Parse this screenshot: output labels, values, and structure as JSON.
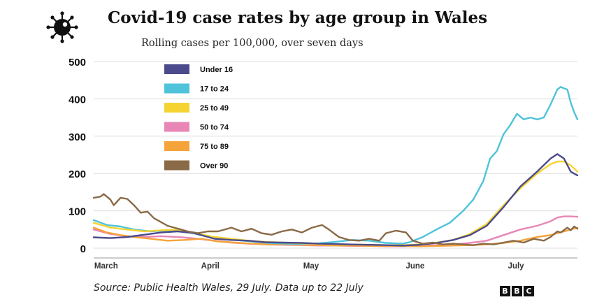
{
  "header": {
    "title": "Covid-19 case rates by age group in Wales",
    "subtitle": "Rolling cases per 100,000, over seven days",
    "logo_icon": "virus-icon"
  },
  "footer": {
    "source": "Source: Public Health Wales, 29 July. Data up to 22 July",
    "brand_letters": [
      "B",
      "B",
      "C"
    ]
  },
  "chart_data": {
    "type": "line",
    "title": "Covid-19 case rates by age group in Wales",
    "subtitle": "Rolling cases per 100,000, over seven days",
    "xlabel": "",
    "ylabel": "",
    "x_tick_labels": [
      "March",
      "April",
      "May",
      "June",
      "July"
    ],
    "y_ticks": [
      0,
      100,
      200,
      300,
      400,
      500
    ],
    "ylim": [
      0,
      500
    ],
    "xlim": [
      "2021-02-28",
      "2021-07-22"
    ],
    "grid": "horizontal",
    "legend_position": "top-left",
    "series": [
      {
        "name": "Under 16",
        "color": "#4b4a8c",
        "points": [
          [
            "2021-02-28",
            29
          ],
          [
            "2021-03-05",
            27
          ],
          [
            "2021-03-10",
            30
          ],
          [
            "2021-03-15",
            36
          ],
          [
            "2021-03-20",
            42
          ],
          [
            "2021-03-25",
            45
          ],
          [
            "2021-03-30",
            40
          ],
          [
            "2021-04-05",
            25
          ],
          [
            "2021-04-10",
            22
          ],
          [
            "2021-04-15",
            20
          ],
          [
            "2021-04-20",
            16
          ],
          [
            "2021-04-25",
            15
          ],
          [
            "2021-05-01",
            14
          ],
          [
            "2021-05-06",
            12
          ],
          [
            "2021-05-11",
            11
          ],
          [
            "2021-05-16",
            10
          ],
          [
            "2021-05-21",
            9
          ],
          [
            "2021-05-26",
            8
          ],
          [
            "2021-05-31",
            7
          ],
          [
            "2021-06-05",
            9
          ],
          [
            "2021-06-10",
            14
          ],
          [
            "2021-06-15",
            22
          ],
          [
            "2021-06-20",
            35
          ],
          [
            "2021-06-25",
            60
          ],
          [
            "2021-06-30",
            110
          ],
          [
            "2021-07-05",
            165
          ],
          [
            "2021-07-10",
            205
          ],
          [
            "2021-07-14",
            240
          ],
          [
            "2021-07-16",
            252
          ],
          [
            "2021-07-18",
            240
          ],
          [
            "2021-07-20",
            205
          ],
          [
            "2021-07-22",
            195
          ]
        ]
      },
      {
        "name": "17 to 24",
        "color": "#4fc3d9",
        "points": [
          [
            "2021-02-28",
            75
          ],
          [
            "2021-03-04",
            62
          ],
          [
            "2021-03-08",
            58
          ],
          [
            "2021-03-12",
            50
          ],
          [
            "2021-03-17",
            45
          ],
          [
            "2021-03-22",
            48
          ],
          [
            "2021-03-27",
            45
          ],
          [
            "2021-04-01",
            35
          ],
          [
            "2021-04-06",
            28
          ],
          [
            "2021-04-11",
            22
          ],
          [
            "2021-04-16",
            18
          ],
          [
            "2021-04-21",
            14
          ],
          [
            "2021-04-26",
            12
          ],
          [
            "2021-05-01",
            11
          ],
          [
            "2021-05-06",
            13
          ],
          [
            "2021-05-11",
            17
          ],
          [
            "2021-05-16",
            22
          ],
          [
            "2021-05-21",
            20
          ],
          [
            "2021-05-26",
            14
          ],
          [
            "2021-05-31",
            12
          ],
          [
            "2021-06-02",
            16
          ],
          [
            "2021-06-06",
            30
          ],
          [
            "2021-06-10",
            50
          ],
          [
            "2021-06-14",
            68
          ],
          [
            "2021-06-18",
            100
          ],
          [
            "2021-06-21",
            130
          ],
          [
            "2021-06-24",
            180
          ],
          [
            "2021-06-26",
            240
          ],
          [
            "2021-06-28",
            260
          ],
          [
            "2021-06-30",
            305
          ],
          [
            "2021-07-02",
            330
          ],
          [
            "2021-07-04",
            360
          ],
          [
            "2021-07-06",
            345
          ],
          [
            "2021-07-08",
            350
          ],
          [
            "2021-07-10",
            345
          ],
          [
            "2021-07-12",
            350
          ],
          [
            "2021-07-14",
            385
          ],
          [
            "2021-07-16",
            425
          ],
          [
            "2021-07-17",
            432
          ],
          [
            "2021-07-18",
            428
          ],
          [
            "2021-07-19",
            425
          ],
          [
            "2021-07-20",
            390
          ],
          [
            "2021-07-21",
            365
          ],
          [
            "2021-07-22",
            345
          ]
        ]
      },
      {
        "name": "25 to 49",
        "color": "#f5d432",
        "points": [
          [
            "2021-02-28",
            68
          ],
          [
            "2021-03-05",
            55
          ],
          [
            "2021-03-10",
            50
          ],
          [
            "2021-03-15",
            45
          ],
          [
            "2021-03-20",
            48
          ],
          [
            "2021-03-25",
            50
          ],
          [
            "2021-03-30",
            40
          ],
          [
            "2021-04-05",
            30
          ],
          [
            "2021-04-10",
            25
          ],
          [
            "2021-04-15",
            20
          ],
          [
            "2021-04-20",
            17
          ],
          [
            "2021-04-25",
            15
          ],
          [
            "2021-05-01",
            13
          ],
          [
            "2021-05-06",
            11
          ],
          [
            "2021-05-11",
            10
          ],
          [
            "2021-05-16",
            10
          ],
          [
            "2021-05-21",
            9
          ],
          [
            "2021-05-26",
            8
          ],
          [
            "2021-05-31",
            8
          ],
          [
            "2021-06-05",
            10
          ],
          [
            "2021-06-10",
            15
          ],
          [
            "2021-06-15",
            22
          ],
          [
            "2021-06-20",
            38
          ],
          [
            "2021-06-25",
            65
          ],
          [
            "2021-06-30",
            115
          ],
          [
            "2021-07-05",
            160
          ],
          [
            "2021-07-10",
            200
          ],
          [
            "2021-07-14",
            225
          ],
          [
            "2021-07-16",
            232
          ],
          [
            "2021-07-18",
            232
          ],
          [
            "2021-07-20",
            222
          ],
          [
            "2021-07-22",
            205
          ]
        ]
      },
      {
        "name": "50 to 74",
        "color": "#e886b6",
        "points": [
          [
            "2021-02-28",
            50
          ],
          [
            "2021-03-05",
            38
          ],
          [
            "2021-03-10",
            32
          ],
          [
            "2021-03-15",
            30
          ],
          [
            "2021-03-20",
            32
          ],
          [
            "2021-03-25",
            30
          ],
          [
            "2021-03-30",
            26
          ],
          [
            "2021-04-05",
            20
          ],
          [
            "2021-04-10",
            15
          ],
          [
            "2021-04-15",
            12
          ],
          [
            "2021-04-20",
            10
          ],
          [
            "2021-04-25",
            9
          ],
          [
            "2021-05-01",
            8
          ],
          [
            "2021-05-06",
            7
          ],
          [
            "2021-05-11",
            7
          ],
          [
            "2021-05-16",
            6
          ],
          [
            "2021-05-21",
            6
          ],
          [
            "2021-05-26",
            5
          ],
          [
            "2021-05-31",
            5
          ],
          [
            "2021-06-05",
            6
          ],
          [
            "2021-06-10",
            8
          ],
          [
            "2021-06-15",
            10
          ],
          [
            "2021-06-20",
            14
          ],
          [
            "2021-06-25",
            20
          ],
          [
            "2021-06-30",
            35
          ],
          [
            "2021-07-05",
            50
          ],
          [
            "2021-07-10",
            60
          ],
          [
            "2021-07-14",
            72
          ],
          [
            "2021-07-16",
            82
          ],
          [
            "2021-07-18",
            85
          ],
          [
            "2021-07-20",
            85
          ],
          [
            "2021-07-22",
            84
          ]
        ]
      },
      {
        "name": "75 to 89",
        "color": "#f5a33b",
        "points": [
          [
            "2021-02-28",
            55
          ],
          [
            "2021-03-04",
            42
          ],
          [
            "2021-03-08",
            35
          ],
          [
            "2021-03-12",
            30
          ],
          [
            "2021-03-17",
            25
          ],
          [
            "2021-03-22",
            20
          ],
          [
            "2021-03-27",
            22
          ],
          [
            "2021-04-01",
            25
          ],
          [
            "2021-04-06",
            18
          ],
          [
            "2021-04-11",
            15
          ],
          [
            "2021-04-16",
            12
          ],
          [
            "2021-04-21",
            10
          ],
          [
            "2021-04-26",
            10
          ],
          [
            "2021-05-01",
            9
          ],
          [
            "2021-05-06",
            8
          ],
          [
            "2021-05-11",
            7
          ],
          [
            "2021-05-16",
            7
          ],
          [
            "2021-05-21",
            6
          ],
          [
            "2021-05-26",
            6
          ],
          [
            "2021-05-31",
            6
          ],
          [
            "2021-06-05",
            5
          ],
          [
            "2021-06-10",
            6
          ],
          [
            "2021-06-15",
            7
          ],
          [
            "2021-06-20",
            8
          ],
          [
            "2021-06-25",
            10
          ],
          [
            "2021-06-30",
            14
          ],
          [
            "2021-07-05",
            20
          ],
          [
            "2021-07-10",
            30
          ],
          [
            "2021-07-14",
            35
          ],
          [
            "2021-07-16",
            40
          ],
          [
            "2021-07-18",
            45
          ],
          [
            "2021-07-20",
            50
          ],
          [
            "2021-07-22",
            55
          ]
        ]
      },
      {
        "name": "Over 90",
        "color": "#8a6a47",
        "points": [
          [
            "2021-02-28",
            135
          ],
          [
            "2021-03-02",
            138
          ],
          [
            "2021-03-03",
            145
          ],
          [
            "2021-03-05",
            130
          ],
          [
            "2021-03-06",
            115
          ],
          [
            "2021-03-08",
            135
          ],
          [
            "2021-03-10",
            132
          ],
          [
            "2021-03-12",
            115
          ],
          [
            "2021-03-14",
            95
          ],
          [
            "2021-03-16",
            98
          ],
          [
            "2021-03-18",
            80
          ],
          [
            "2021-03-20",
            70
          ],
          [
            "2021-03-22",
            60
          ],
          [
            "2021-03-24",
            55
          ],
          [
            "2021-03-26",
            50
          ],
          [
            "2021-03-28",
            45
          ],
          [
            "2021-03-31",
            40
          ],
          [
            "2021-04-03",
            45
          ],
          [
            "2021-04-06",
            45
          ],
          [
            "2021-04-10",
            55
          ],
          [
            "2021-04-13",
            45
          ],
          [
            "2021-04-16",
            52
          ],
          [
            "2021-04-19",
            40
          ],
          [
            "2021-04-22",
            36
          ],
          [
            "2021-04-25",
            45
          ],
          [
            "2021-04-28",
            50
          ],
          [
            "2021-05-01",
            42
          ],
          [
            "2021-05-04",
            55
          ],
          [
            "2021-05-07",
            62
          ],
          [
            "2021-05-09",
            50
          ],
          [
            "2021-05-12",
            30
          ],
          [
            "2021-05-15",
            22
          ],
          [
            "2021-05-18",
            20
          ],
          [
            "2021-05-21",
            25
          ],
          [
            "2021-05-24",
            20
          ],
          [
            "2021-05-26",
            40
          ],
          [
            "2021-05-29",
            47
          ],
          [
            "2021-06-01",
            42
          ],
          [
            "2021-06-03",
            20
          ],
          [
            "2021-06-06",
            12
          ],
          [
            "2021-06-09",
            15
          ],
          [
            "2021-06-12",
            10
          ],
          [
            "2021-06-15",
            12
          ],
          [
            "2021-06-18",
            10
          ],
          [
            "2021-06-21",
            8
          ],
          [
            "2021-06-24",
            12
          ],
          [
            "2021-06-27",
            10
          ],
          [
            "2021-06-30",
            15
          ],
          [
            "2021-07-03",
            20
          ],
          [
            "2021-07-06",
            15
          ],
          [
            "2021-07-09",
            25
          ],
          [
            "2021-07-12",
            20
          ],
          [
            "2021-07-14",
            30
          ],
          [
            "2021-07-16",
            45
          ],
          [
            "2021-07-17",
            42
          ],
          [
            "2021-07-19",
            55
          ],
          [
            "2021-07-20",
            48
          ],
          [
            "2021-07-21",
            58
          ],
          [
            "2021-07-22",
            52
          ]
        ]
      }
    ]
  }
}
